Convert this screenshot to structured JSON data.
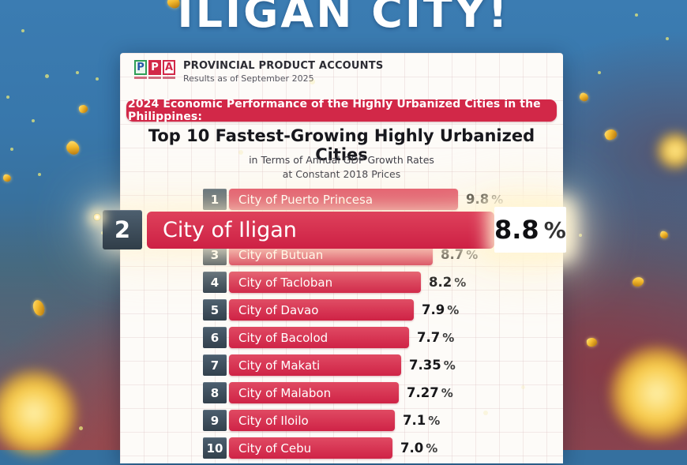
{
  "page_title": "ILIGAN CITY!",
  "card": {
    "logo": {
      "letters": [
        "P",
        "P",
        "A"
      ],
      "org_name": "PROVINCIAL PRODUCT ACCOUNTS",
      "org_subtitle": "Results as of September 2025"
    },
    "banner": "2024 Economic Performance of the Highly Urbanized Cities in the Philippines:",
    "title": "Top 10 Fastest-Growing Highly Urbanized Cities",
    "subtitle_line1": "in Terms of Annual GDP Growth Rates",
    "subtitle_line2": "at Constant 2018 Prices"
  },
  "chart_data": {
    "type": "bar",
    "orientation": "horizontal",
    "title": "Top 10 Fastest-Growing Highly Urbanized Cities",
    "subtitle": "in Terms of Annual GDP Growth Rates at Constant 2018 Prices",
    "unit": "%",
    "ranks": [
      1,
      2,
      3,
      4,
      5,
      6,
      7,
      8,
      9,
      10
    ],
    "categories": [
      "City of Puerto Princesa",
      "City of Iligan",
      "City of Butuan",
      "City of Tacloban",
      "City of Davao",
      "City of Bacolod",
      "City of Makati",
      "City of Malabon",
      "City of Iloilo",
      "City of Cebu"
    ],
    "values": [
      9.8,
      8.8,
      8.7,
      8.2,
      7.9,
      7.7,
      7.35,
      7.27,
      7.1,
      7.0
    ],
    "values_display": [
      "9.8",
      "8.8",
      "8.7",
      "8.2",
      "7.9",
      "7.7",
      "7.35",
      "7.27",
      "7.1",
      "7.0"
    ],
    "highlighted_rank": 2,
    "bar_color": "#d5294a",
    "rank_box_color": "#3e4f5c",
    "value_color": "#17171a",
    "legend": "none",
    "grid": "faint graph-paper grid on card"
  },
  "colors": {
    "banner_bg": "#d22848",
    "headline_text": "#ffffff",
    "card_bg": "#fdfbf8",
    "confetti_gold": "#f3b82c"
  }
}
